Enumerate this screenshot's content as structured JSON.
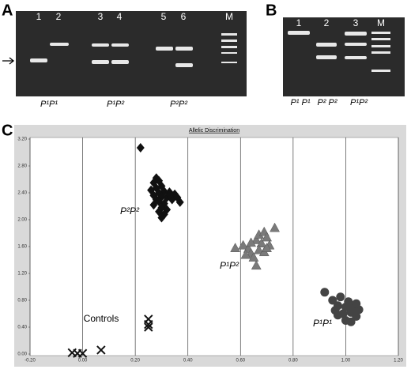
{
  "panels": {
    "A": {
      "label": "A",
      "lanes": [
        "1",
        "2",
        "3",
        "4",
        "5",
        "6",
        "M"
      ],
      "genotypes": [
        "P¹P¹",
        "P¹P²",
        "P²P²"
      ]
    },
    "B": {
      "label": "B",
      "lanes": [
        "1",
        "2",
        "3",
        "M"
      ],
      "genotypes": [
        "P¹ P¹",
        "P² P²",
        "P¹P²"
      ]
    },
    "C": {
      "label": "C"
    }
  },
  "chart_data": {
    "type": "scatter",
    "title": "Allelic Discrimination",
    "xlim": [
      -0.2,
      1.2
    ],
    "xticks": [
      {
        "value": -0.2,
        "label": "-0.20"
      },
      {
        "value": 0,
        "label": "0.00"
      },
      {
        "value": 0.2,
        "label": "0.20"
      },
      {
        "value": 0.4,
        "label": "0.40"
      },
      {
        "value": 0.6,
        "label": "0.60"
      },
      {
        "value": 0.8,
        "label": "0.80"
      },
      {
        "value": 1,
        "label": "1.00"
      },
      {
        "value": 1.2,
        "label": "1.20"
      }
    ],
    "ylim": [
      0,
      3.2
    ],
    "yticks": [
      {
        "value": 0,
        "label": "0.00"
      },
      {
        "value": 0.4,
        "label": "0.40"
      },
      {
        "value": 0.8,
        "label": "0.80"
      },
      {
        "value": 1.2,
        "label": "1.20"
      },
      {
        "value": 1.6,
        "label": "1.60"
      },
      {
        "value": 2,
        "label": "2.00"
      },
      {
        "value": 2.4,
        "label": "2.40"
      },
      {
        "value": 2.8,
        "label": "2.80"
      },
      {
        "value": 3.2,
        "label": "3.20"
      }
    ],
    "grid": "x",
    "series": [
      {
        "name": "P²P²",
        "marker": "diamond",
        "color": "#111111",
        "x": [
          0.22,
          0.28,
          0.29,
          0.27,
          0.3,
          0.28,
          0.26,
          0.31,
          0.29,
          0.33,
          0.35,
          0.27,
          0.3,
          0.32,
          0.28,
          0.34,
          0.37,
          0.29,
          0.31,
          0.27,
          0.3,
          0.32,
          0.29,
          0.31,
          0.3,
          0.33,
          0.36
        ],
        "values": [
          3.07,
          2.62,
          2.58,
          2.55,
          2.5,
          2.47,
          2.44,
          2.42,
          2.4,
          2.41,
          2.38,
          2.36,
          2.34,
          2.33,
          2.3,
          2.3,
          2.26,
          2.27,
          2.24,
          2.22,
          2.18,
          2.15,
          2.12,
          2.08,
          2.03,
          2.37,
          2.33
        ]
      },
      {
        "name": "P¹P²",
        "marker": "triangle",
        "color": "#7a7a7a",
        "x": [
          0.58,
          0.61,
          0.63,
          0.64,
          0.65,
          0.66,
          0.66,
          0.67,
          0.68,
          0.69,
          0.7,
          0.71,
          0.73,
          0.67,
          0.69,
          0.64,
          0.62,
          0.7
        ],
        "values": [
          1.58,
          1.62,
          1.57,
          1.5,
          1.44,
          1.32,
          1.7,
          1.78,
          1.65,
          1.82,
          1.74,
          1.62,
          1.88,
          1.55,
          1.52,
          1.66,
          1.48,
          1.58
        ]
      },
      {
        "name": "P¹P¹",
        "marker": "circle",
        "color": "#444444",
        "x": [
          0.92,
          0.95,
          0.97,
          0.98,
          1.0,
          1.01,
          1.02,
          1.03,
          1.04,
          1.05,
          0.99,
          0.97,
          1.0,
          1.02,
          0.96,
          1.04
        ],
        "values": [
          0.92,
          0.8,
          0.72,
          0.85,
          0.7,
          0.78,
          0.62,
          0.7,
          0.56,
          0.66,
          0.6,
          0.58,
          0.5,
          0.48,
          0.65,
          0.75
        ]
      },
      {
        "name": "Controls",
        "marker": "x",
        "color": "#111111",
        "x": [
          -0.04,
          -0.02,
          0.0,
          0.07,
          0.25,
          0.25,
          0.25
        ],
        "values": [
          0.02,
          0.01,
          0.01,
          0.06,
          0.52,
          0.44,
          0.4
        ]
      }
    ]
  }
}
